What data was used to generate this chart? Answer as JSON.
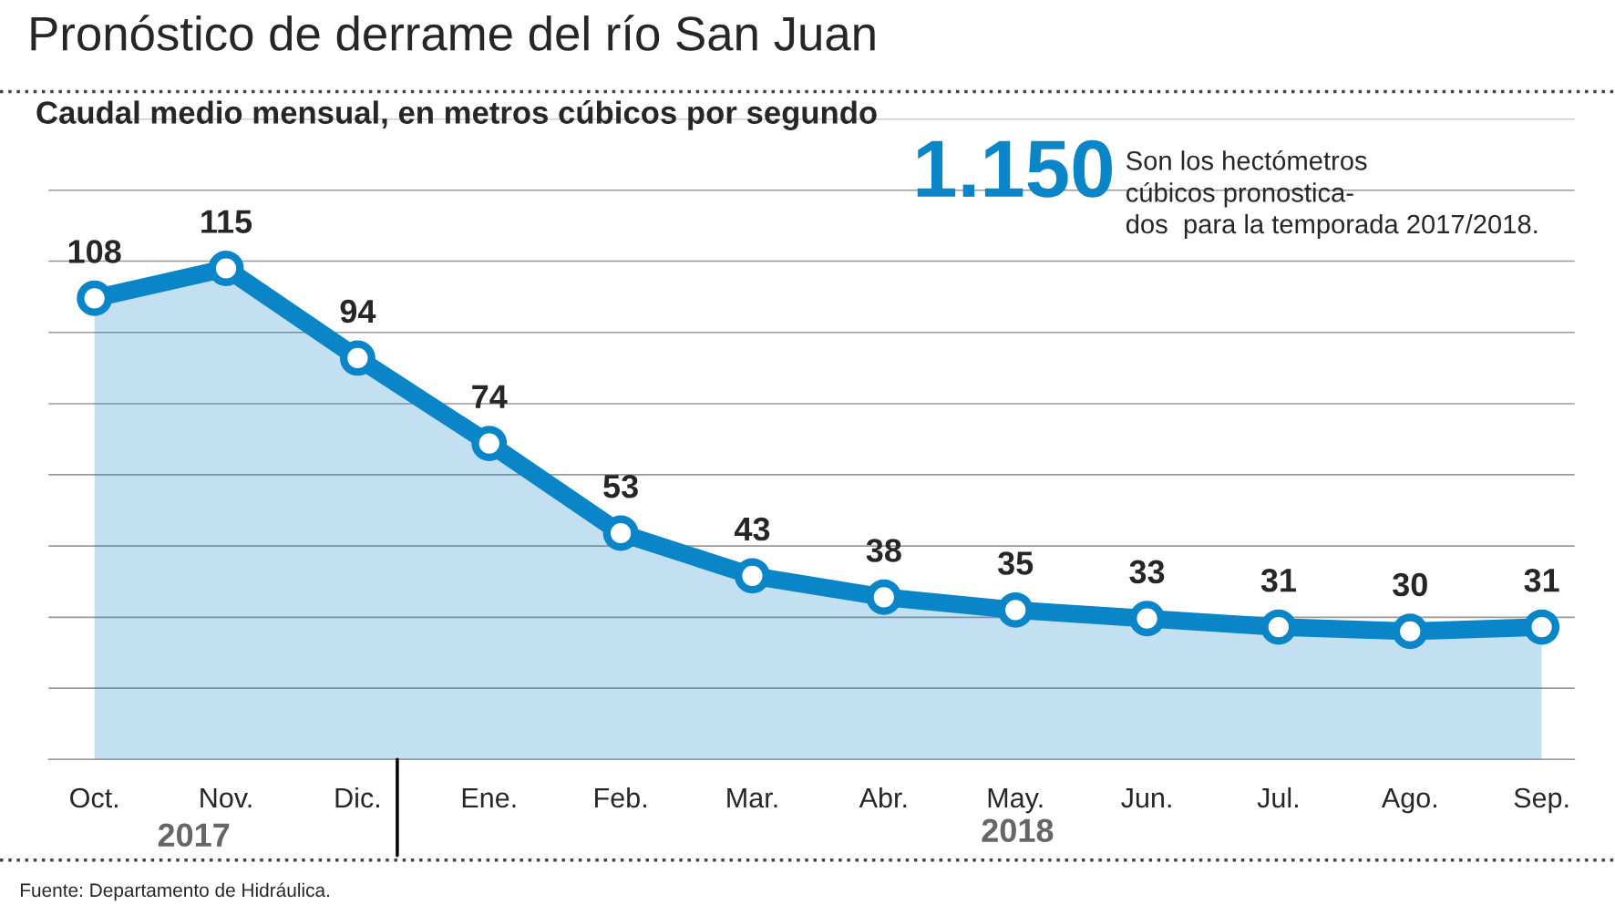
{
  "chart_data": {
    "type": "area",
    "title": "Pronóstico de derrame del río San Juan",
    "subtitle": "Caudal medio mensual, en metros cúbicos por segundo",
    "categories": [
      "Oct.",
      "Nov.",
      "Dic.",
      "Ene.",
      "Feb.",
      "Mar.",
      "Abr.",
      "May.",
      "Jun.",
      "Jul.",
      "Ago.",
      "Sep."
    ],
    "series": [
      {
        "color": "#0a85c8",
        "values": [
          108,
          115,
          94,
          74,
          53,
          43,
          38,
          35,
          33,
          31,
          30,
          31
        ]
      }
    ],
    "ylim": [
      0,
      150
    ],
    "yticks": [
      {
        "value": 0,
        "label": null
      },
      {
        "value": 16.7,
        "label": null
      },
      {
        "value": 33.3,
        "label": null
      },
      {
        "value": 50,
        "label": null
      },
      {
        "value": 66.7,
        "label": null
      },
      {
        "value": 83.3,
        "label": null
      },
      {
        "value": 100,
        "label": null
      },
      {
        "value": 116.7,
        "label": null
      },
      {
        "value": 133.3,
        "label": null
      },
      {
        "value": 150,
        "label": null
      }
    ],
    "tick_labels": "x",
    "grid": "y",
    "marker": "circle",
    "line_style": "solid",
    "data_labels": true,
    "annotations": [
      "1.150",
      "Son los hectómetros\ncúbicos pronostica-\ndos  para la temporada 2017/2018.",
      "2017",
      "2018",
      "Fuente: Departamento de Hidráulica."
    ]
  }
}
